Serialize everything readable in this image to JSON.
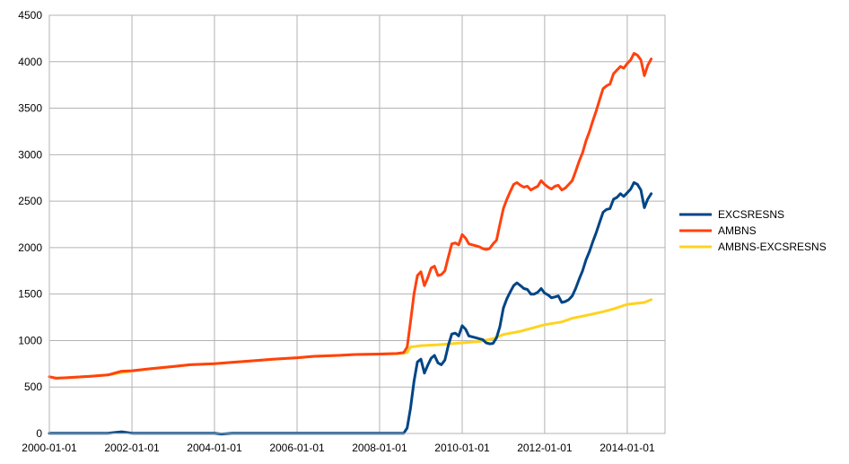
{
  "chart_data": {
    "type": "line",
    "title": "",
    "xlabel": "",
    "ylabel": "",
    "ylim": [
      0,
      4500
    ],
    "yticks": [
      0,
      500,
      1000,
      1500,
      2000,
      2500,
      3000,
      3500,
      4000,
      4500
    ],
    "xlim": [
      "2000-01-01",
      "2014-12-01"
    ],
    "xticks": [
      "2000-01-01",
      "2002-01-01",
      "2004-01-01",
      "2006-01-01",
      "2008-01-01",
      "2010-01-01",
      "2012-01-01",
      "2014-01-01"
    ],
    "grid": true,
    "legend": "right",
    "series": [
      {
        "name": "EXCSRESNS",
        "color": "#004586",
        "points": [
          [
            "2000-01-01",
            2
          ],
          [
            "2000-06-01",
            2
          ],
          [
            "2001-01-01",
            3
          ],
          [
            "2001-06-01",
            2
          ],
          [
            "2001-10-01",
            18
          ],
          [
            "2002-01-01",
            3
          ],
          [
            "2003-01-01",
            2
          ],
          [
            "2004-01-01",
            2
          ],
          [
            "2004-03-01",
            -6
          ],
          [
            "2004-06-01",
            2
          ],
          [
            "2005-01-01",
            2
          ],
          [
            "2006-01-01",
            2
          ],
          [
            "2007-01-01",
            2
          ],
          [
            "2008-01-01",
            2
          ],
          [
            "2008-08-01",
            2
          ],
          [
            "2008-09-01",
            60
          ],
          [
            "2008-10-01",
            270
          ],
          [
            "2008-11-01",
            560
          ],
          [
            "2008-12-01",
            770
          ],
          [
            "2009-01-01",
            800
          ],
          [
            "2009-02-01",
            650
          ],
          [
            "2009-03-01",
            730
          ],
          [
            "2009-04-01",
            810
          ],
          [
            "2009-05-01",
            840
          ],
          [
            "2009-06-01",
            760
          ],
          [
            "2009-07-01",
            740
          ],
          [
            "2009-08-01",
            790
          ],
          [
            "2009-09-01",
            950
          ],
          [
            "2009-10-01",
            1070
          ],
          [
            "2009-11-01",
            1080
          ],
          [
            "2009-12-01",
            1050
          ],
          [
            "2010-01-01",
            1160
          ],
          [
            "2010-02-01",
            1120
          ],
          [
            "2010-03-01",
            1050
          ],
          [
            "2010-04-01",
            1040
          ],
          [
            "2010-05-01",
            1030
          ],
          [
            "2010-06-01",
            1020
          ],
          [
            "2010-07-01",
            1010
          ],
          [
            "2010-08-01",
            975
          ],
          [
            "2010-09-01",
            965
          ],
          [
            "2010-10-01",
            970
          ],
          [
            "2010-11-01",
            1030
          ],
          [
            "2010-12-01",
            1150
          ],
          [
            "2011-01-01",
            1350
          ],
          [
            "2011-02-01",
            1450
          ],
          [
            "2011-03-01",
            1520
          ],
          [
            "2011-04-01",
            1590
          ],
          [
            "2011-05-01",
            1620
          ],
          [
            "2011-06-01",
            1590
          ],
          [
            "2011-07-01",
            1560
          ],
          [
            "2011-08-01",
            1550
          ],
          [
            "2011-09-01",
            1500
          ],
          [
            "2011-10-01",
            1500
          ],
          [
            "2011-11-01",
            1520
          ],
          [
            "2011-12-01",
            1560
          ],
          [
            "2012-01-01",
            1510
          ],
          [
            "2012-02-01",
            1490
          ],
          [
            "2012-03-01",
            1460
          ],
          [
            "2012-04-01",
            1470
          ],
          [
            "2012-05-01",
            1480
          ],
          [
            "2012-06-01",
            1410
          ],
          [
            "2012-07-01",
            1420
          ],
          [
            "2012-08-01",
            1440
          ],
          [
            "2012-09-01",
            1480
          ],
          [
            "2012-10-01",
            1560
          ],
          [
            "2012-11-01",
            1660
          ],
          [
            "2012-12-01",
            1750
          ],
          [
            "2013-01-01",
            1870
          ],
          [
            "2013-02-01",
            1960
          ],
          [
            "2013-03-01",
            2060
          ],
          [
            "2013-04-01",
            2160
          ],
          [
            "2013-05-01",
            2270
          ],
          [
            "2013-06-01",
            2380
          ],
          [
            "2013-07-01",
            2410
          ],
          [
            "2013-08-01",
            2420
          ],
          [
            "2013-09-01",
            2520
          ],
          [
            "2013-10-01",
            2540
          ],
          [
            "2013-11-01",
            2580
          ],
          [
            "2013-12-01",
            2550
          ],
          [
            "2014-01-01",
            2590
          ],
          [
            "2014-02-01",
            2630
          ],
          [
            "2014-03-01",
            2700
          ],
          [
            "2014-04-01",
            2680
          ],
          [
            "2014-05-01",
            2620
          ],
          [
            "2014-06-01",
            2430
          ],
          [
            "2014-07-01",
            2520
          ],
          [
            "2014-08-01",
            2580
          ]
        ]
      },
      {
        "name": "AMBNS",
        "color": "#ff420e",
        "points": [
          [
            "2000-01-01",
            610
          ],
          [
            "2000-03-01",
            595
          ],
          [
            "2000-06-01",
            600
          ],
          [
            "2001-01-01",
            615
          ],
          [
            "2001-06-01",
            630
          ],
          [
            "2001-10-01",
            670
          ],
          [
            "2002-01-01",
            675
          ],
          [
            "2002-06-01",
            695
          ],
          [
            "2003-01-01",
            720
          ],
          [
            "2003-06-01",
            740
          ],
          [
            "2004-01-01",
            750
          ],
          [
            "2004-06-01",
            765
          ],
          [
            "2005-01-01",
            785
          ],
          [
            "2005-06-01",
            800
          ],
          [
            "2006-01-01",
            815
          ],
          [
            "2006-06-01",
            830
          ],
          [
            "2007-01-01",
            840
          ],
          [
            "2007-06-01",
            850
          ],
          [
            "2008-01-01",
            855
          ],
          [
            "2008-06-01",
            860
          ],
          [
            "2008-08-01",
            870
          ],
          [
            "2008-09-01",
            930
          ],
          [
            "2008-10-01",
            1200
          ],
          [
            "2008-11-01",
            1500
          ],
          [
            "2008-12-01",
            1700
          ],
          [
            "2009-01-01",
            1740
          ],
          [
            "2009-02-01",
            1590
          ],
          [
            "2009-03-01",
            1670
          ],
          [
            "2009-04-01",
            1780
          ],
          [
            "2009-05-01",
            1800
          ],
          [
            "2009-06-01",
            1700
          ],
          [
            "2009-07-01",
            1710
          ],
          [
            "2009-08-01",
            1750
          ],
          [
            "2009-09-01",
            1900
          ],
          [
            "2009-10-01",
            2040
          ],
          [
            "2009-11-01",
            2050
          ],
          [
            "2009-12-01",
            2030
          ],
          [
            "2010-01-01",
            2140
          ],
          [
            "2010-02-01",
            2100
          ],
          [
            "2010-03-01",
            2040
          ],
          [
            "2010-04-01",
            2030
          ],
          [
            "2010-05-01",
            2020
          ],
          [
            "2010-06-01",
            2010
          ],
          [
            "2010-07-01",
            1990
          ],
          [
            "2010-08-01",
            1980
          ],
          [
            "2010-09-01",
            1990
          ],
          [
            "2010-10-01",
            2040
          ],
          [
            "2010-11-01",
            2080
          ],
          [
            "2010-12-01",
            2250
          ],
          [
            "2011-01-01",
            2420
          ],
          [
            "2011-02-01",
            2520
          ],
          [
            "2011-03-01",
            2600
          ],
          [
            "2011-04-01",
            2680
          ],
          [
            "2011-05-01",
            2700
          ],
          [
            "2011-06-01",
            2670
          ],
          [
            "2011-07-01",
            2650
          ],
          [
            "2011-08-01",
            2660
          ],
          [
            "2011-09-01",
            2620
          ],
          [
            "2011-10-01",
            2640
          ],
          [
            "2011-11-01",
            2660
          ],
          [
            "2011-12-01",
            2720
          ],
          [
            "2012-01-01",
            2680
          ],
          [
            "2012-02-01",
            2650
          ],
          [
            "2012-03-01",
            2630
          ],
          [
            "2012-04-01",
            2660
          ],
          [
            "2012-05-01",
            2670
          ],
          [
            "2012-06-01",
            2620
          ],
          [
            "2012-07-01",
            2640
          ],
          [
            "2012-08-01",
            2680
          ],
          [
            "2012-09-01",
            2720
          ],
          [
            "2012-10-01",
            2820
          ],
          [
            "2012-11-01",
            2930
          ],
          [
            "2012-12-01",
            3020
          ],
          [
            "2013-01-01",
            3150
          ],
          [
            "2013-02-01",
            3250
          ],
          [
            "2013-03-01",
            3360
          ],
          [
            "2013-04-01",
            3470
          ],
          [
            "2013-05-01",
            3590
          ],
          [
            "2013-06-01",
            3710
          ],
          [
            "2013-07-01",
            3740
          ],
          [
            "2013-08-01",
            3760
          ],
          [
            "2013-09-01",
            3870
          ],
          [
            "2013-10-01",
            3910
          ],
          [
            "2013-11-01",
            3950
          ],
          [
            "2013-12-01",
            3930
          ],
          [
            "2014-01-01",
            3980
          ],
          [
            "2014-02-01",
            4020
          ],
          [
            "2014-03-01",
            4090
          ],
          [
            "2014-04-01",
            4070
          ],
          [
            "2014-05-01",
            4020
          ],
          [
            "2014-06-01",
            3850
          ],
          [
            "2014-07-01",
            3960
          ],
          [
            "2014-08-01",
            4030
          ]
        ]
      },
      {
        "name": "AMBNS-EXCSRESNS",
        "color": "#ffd320",
        "points": [
          [
            "2000-01-01",
            610
          ],
          [
            "2000-03-01",
            595
          ],
          [
            "2000-06-01",
            600
          ],
          [
            "2001-01-01",
            615
          ],
          [
            "2001-06-01",
            630
          ],
          [
            "2001-10-01",
            655
          ],
          [
            "2002-01-01",
            672
          ],
          [
            "2002-06-01",
            695
          ],
          [
            "2003-01-01",
            720
          ],
          [
            "2003-06-01",
            740
          ],
          [
            "2004-01-01",
            750
          ],
          [
            "2004-06-01",
            765
          ],
          [
            "2005-01-01",
            785
          ],
          [
            "2005-06-01",
            800
          ],
          [
            "2006-01-01",
            815
          ],
          [
            "2006-06-01",
            830
          ],
          [
            "2007-01-01",
            840
          ],
          [
            "2007-06-01",
            850
          ],
          [
            "2008-01-01",
            855
          ],
          [
            "2008-06-01",
            858
          ],
          [
            "2008-09-01",
            870
          ],
          [
            "2008-10-01",
            930
          ],
          [
            "2009-01-01",
            945
          ],
          [
            "2009-06-01",
            955
          ],
          [
            "2010-01-01",
            975
          ],
          [
            "2010-06-01",
            990
          ],
          [
            "2010-10-01",
            1020
          ],
          [
            "2011-01-01",
            1065
          ],
          [
            "2011-06-01",
            1100
          ],
          [
            "2012-01-01",
            1170
          ],
          [
            "2012-06-01",
            1200
          ],
          [
            "2012-09-01",
            1240
          ],
          [
            "2013-01-01",
            1270
          ],
          [
            "2013-06-01",
            1310
          ],
          [
            "2013-09-01",
            1340
          ],
          [
            "2014-01-01",
            1390
          ],
          [
            "2014-06-01",
            1410
          ],
          [
            "2014-08-01",
            1440
          ]
        ]
      }
    ]
  }
}
